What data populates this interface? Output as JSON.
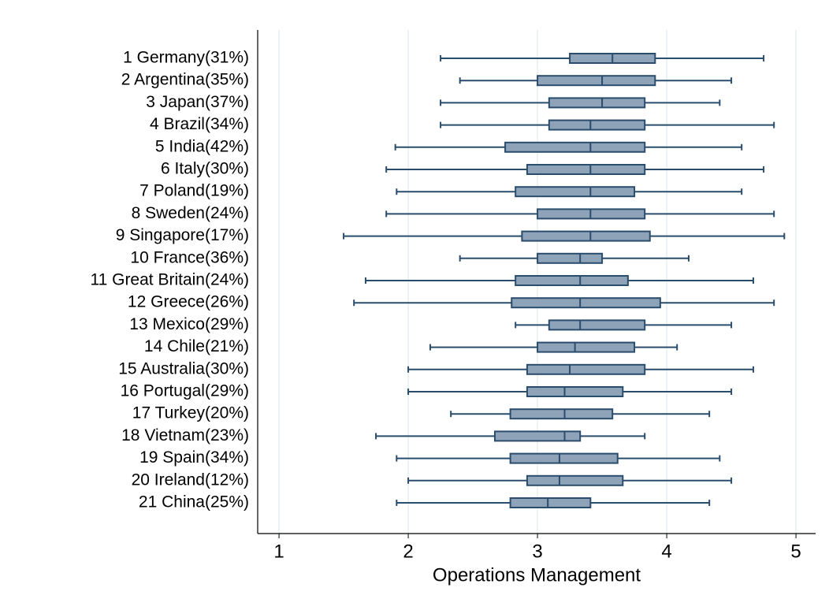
{
  "chart_data": {
    "type": "box",
    "orientation": "horizontal",
    "x_label": "Operations Management",
    "categories": [
      "1 Germany(31%)",
      "2 Argentina(35%)",
      "3 Japan(37%)",
      "4 Brazil(34%)",
      "5 India(42%)",
      "6 Italy(30%)",
      "7 Poland(19%)",
      "8 Sweden(24%)",
      "9 Singapore(17%)",
      "10 France(36%)",
      "11 Great Britain(24%)",
      "12 Greece(26%)",
      "13 Mexico(29%)",
      "14 Chile(21%)",
      "15 Australia(30%)",
      "16 Portugal(29%)",
      "17 Turkey(20%)",
      "18 Vietnam(23%)",
      "19 Spain(34%)",
      "20 Ireland(12%)",
      "21 China(25%)"
    ],
    "low": [
      2.25,
      2.4,
      2.25,
      2.25,
      1.9,
      1.83,
      1.91,
      1.83,
      1.5,
      2.4,
      1.67,
      1.58,
      2.83,
      2.17,
      2.0,
      2.0,
      2.33,
      1.75,
      1.91,
      2.0,
      1.91
    ],
    "q1": [
      3.25,
      3.0,
      3.09,
      3.09,
      2.75,
      2.92,
      2.83,
      3.0,
      2.88,
      3.0,
      2.83,
      2.8,
      3.09,
      3.0,
      2.92,
      2.92,
      2.79,
      2.67,
      2.79,
      2.92,
      2.79
    ],
    "median": [
      3.58,
      3.5,
      3.5,
      3.41,
      3.41,
      3.41,
      3.41,
      3.41,
      3.41,
      3.33,
      3.33,
      3.33,
      3.33,
      3.29,
      3.25,
      3.21,
      3.21,
      3.21,
      3.17,
      3.17,
      3.08
    ],
    "q3": [
      3.91,
      3.91,
      3.83,
      3.83,
      3.83,
      3.83,
      3.75,
      3.83,
      3.87,
      3.5,
      3.7,
      3.95,
      3.83,
      3.75,
      3.83,
      3.66,
      3.58,
      3.33,
      3.62,
      3.66,
      3.41
    ],
    "high": [
      4.75,
      4.5,
      4.41,
      4.83,
      4.58,
      4.75,
      4.58,
      4.83,
      4.91,
      4.17,
      4.67,
      4.83,
      4.5,
      4.08,
      4.67,
      4.5,
      4.33,
      3.83,
      4.41,
      4.5,
      4.33
    ],
    "xlim": [
      0.835,
      5.152
    ],
    "xticks": [
      1,
      2,
      3,
      4,
      5
    ],
    "grid": true,
    "color": "#8ea2b8",
    "edge_color": "#2a4d6e"
  }
}
